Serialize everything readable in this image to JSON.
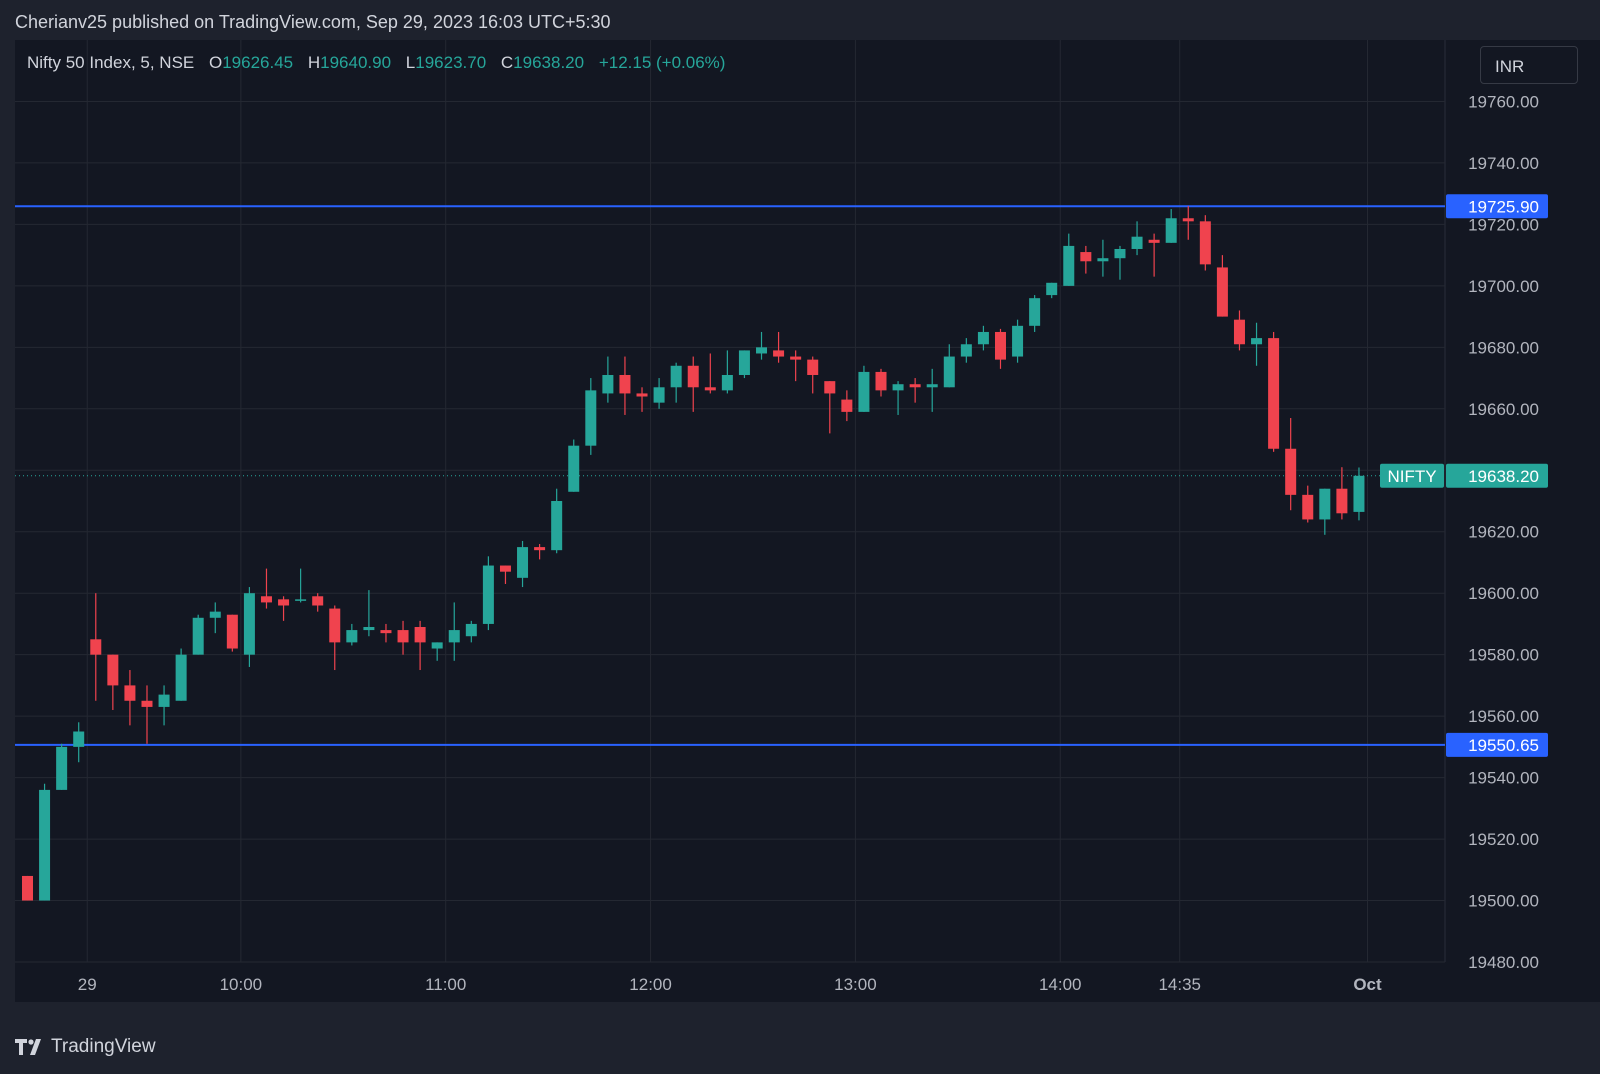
{
  "header": {
    "publisher_line": "Cherianv25 published on TradingView.com, Sep 29, 2023 16:03 UTC+5:30"
  },
  "legend": {
    "symbol": "Nifty 50 Index, 5, NSE",
    "o_label": "O",
    "o_value": "19626.45",
    "h_label": "H",
    "h_value": "19640.90",
    "l_label": "L",
    "l_value": "19623.70",
    "c_label": "C",
    "c_value": "19638.20",
    "change": "+12.15 (+0.06%)"
  },
  "currency_button": "INR",
  "footer": {
    "brand": "TradingView"
  },
  "colors": {
    "up": "#26a69a",
    "down": "#f0434e",
    "background": "#131722",
    "hline": "#2962ff",
    "grid": "#242832"
  },
  "chart_data": {
    "type": "candlestick",
    "interval": "5",
    "ylim": [
      19480,
      19780
    ],
    "y_ticks": [
      "19760.00",
      "19740.00",
      "19720.00",
      "19700.00",
      "19680.00",
      "19660.00",
      "19640.00",
      "19620.00",
      "19600.00",
      "19580.00",
      "19560.00",
      "19540.00",
      "19520.00",
      "19500.00",
      "19480.00"
    ],
    "x_ticks": [
      {
        "label": "29",
        "bar": 3.5
      },
      {
        "label": "10:00",
        "bar": 12.5
      },
      {
        "label": "11:00",
        "bar": 24.5
      },
      {
        "label": "12:00",
        "bar": 36.5
      },
      {
        "label": "13:00",
        "bar": 48.5
      },
      {
        "label": "14:00",
        "bar": 60.5
      },
      {
        "label": "14:35",
        "bar": 67.5
      },
      {
        "label": "Oct",
        "bar": 78.5
      }
    ],
    "horizontal_lines": [
      {
        "value": "19725.90",
        "color": "#2962ff"
      },
      {
        "value": "19550.65",
        "color": "#2962ff"
      }
    ],
    "last_price": {
      "symbol": "NIFTY",
      "value": "19638.20"
    },
    "grid": true,
    "ohlc": [
      [
        19508,
        19508,
        19500,
        19500
      ],
      [
        19500,
        19538,
        19500,
        19536
      ],
      [
        19536,
        19551,
        19536,
        19550
      ],
      [
        19550,
        19558,
        19545,
        19555
      ],
      [
        19585,
        19600,
        19565,
        19580
      ],
      [
        19580,
        19580,
        19562,
        19570
      ],
      [
        19570,
        19575,
        19557,
        19565
      ],
      [
        19565,
        19570,
        19551,
        19563
      ],
      [
        19563,
        19570,
        19557,
        19567
      ],
      [
        19565,
        19582,
        19565,
        19580
      ],
      [
        19580,
        19593,
        19580,
        19592
      ],
      [
        19592,
        19597,
        19587,
        19594
      ],
      [
        19593,
        19593,
        19581,
        19582
      ],
      [
        19580,
        19602,
        19576,
        19600
      ],
      [
        19599,
        19608,
        19595,
        19597
      ],
      [
        19598,
        19599,
        19591,
        19596
      ],
      [
        19598,
        19608,
        19597,
        19598
      ],
      [
        19599,
        19600,
        19594,
        19596
      ],
      [
        19595,
        19596,
        19575,
        19584
      ],
      [
        19584,
        19590,
        19583,
        19588
      ],
      [
        19588,
        19601,
        19586,
        19589
      ],
      [
        19588,
        19590,
        19584,
        19587
      ],
      [
        19588,
        19591,
        19580,
        19584
      ],
      [
        19589,
        19591,
        19575,
        19584
      ],
      [
        19582,
        19584,
        19578,
        19584
      ],
      [
        19584,
        19597,
        19578,
        19588
      ],
      [
        19586,
        19591,
        19584,
        19590
      ],
      [
        19590,
        19612,
        19588,
        19609
      ],
      [
        19609,
        19609,
        19603,
        19607
      ],
      [
        19605,
        19617,
        19602,
        19615
      ],
      [
        19615,
        19616,
        19611,
        19614
      ],
      [
        19614,
        19634,
        19613,
        19630
      ],
      [
        19633,
        19650,
        19633,
        19648
      ],
      [
        19648,
        19670,
        19645,
        19666
      ],
      [
        19665,
        19677,
        19662,
        19671
      ],
      [
        19671,
        19677,
        19658,
        19665
      ],
      [
        19665,
        19667,
        19659,
        19664
      ],
      [
        19662,
        19670,
        19660,
        19667
      ],
      [
        19667,
        19675,
        19662,
        19674
      ],
      [
        19674,
        19677,
        19659,
        19667
      ],
      [
        19667,
        19678,
        19665,
        19666
      ],
      [
        19666,
        19679,
        19665,
        19671
      ],
      [
        19671,
        19679,
        19670,
        19679
      ],
      [
        19678,
        19685,
        19676,
        19680
      ],
      [
        19679,
        19685,
        19675,
        19677
      ],
      [
        19677,
        19679,
        19669,
        19676
      ],
      [
        19676,
        19677,
        19665,
        19671
      ],
      [
        19669,
        19669,
        19652,
        19665
      ],
      [
        19663,
        19666,
        19656,
        19659
      ],
      [
        19659,
        19674,
        19659,
        19672
      ],
      [
        19672,
        19673,
        19664,
        19666
      ],
      [
        19666,
        19669,
        19658,
        19668
      ],
      [
        19668,
        19670,
        19662,
        19667
      ],
      [
        19667,
        19673,
        19659,
        19668
      ],
      [
        19667,
        19681,
        19667,
        19677
      ],
      [
        19677,
        19683,
        19675,
        19681
      ],
      [
        19681,
        19687,
        19679,
        19685
      ],
      [
        19685,
        19686,
        19673,
        19676
      ],
      [
        19677,
        19689,
        19675,
        19687
      ],
      [
        19687,
        19697,
        19685,
        19696
      ],
      [
        19697,
        19701,
        19696,
        19701
      ],
      [
        19700,
        19717,
        19700,
        19713
      ],
      [
        19711,
        19713,
        19704,
        19708
      ],
      [
        19708,
        19715,
        19703,
        19709
      ],
      [
        19709,
        19713,
        19702,
        19712
      ],
      [
        19712,
        19721,
        19710,
        19716
      ],
      [
        19715,
        19717,
        19703,
        19714
      ],
      [
        19714,
        19725,
        19714,
        19722
      ],
      [
        19722,
        19726,
        19715,
        19721
      ],
      [
        19721,
        19723,
        19705,
        19707
      ],
      [
        19706,
        19710,
        19690,
        19690
      ],
      [
        19689,
        19692,
        19679,
        19681
      ],
      [
        19681,
        19688,
        19674,
        19683
      ],
      [
        19683,
        19685,
        19646,
        19647
      ],
      [
        19647,
        19657,
        19627,
        19632
      ],
      [
        19632,
        19635,
        19623,
        19624
      ],
      [
        19624,
        19634,
        19619,
        19634
      ],
      [
        19634,
        19641,
        19624,
        19626
      ],
      [
        19626.45,
        19640.9,
        19623.7,
        19638.2
      ]
    ]
  }
}
